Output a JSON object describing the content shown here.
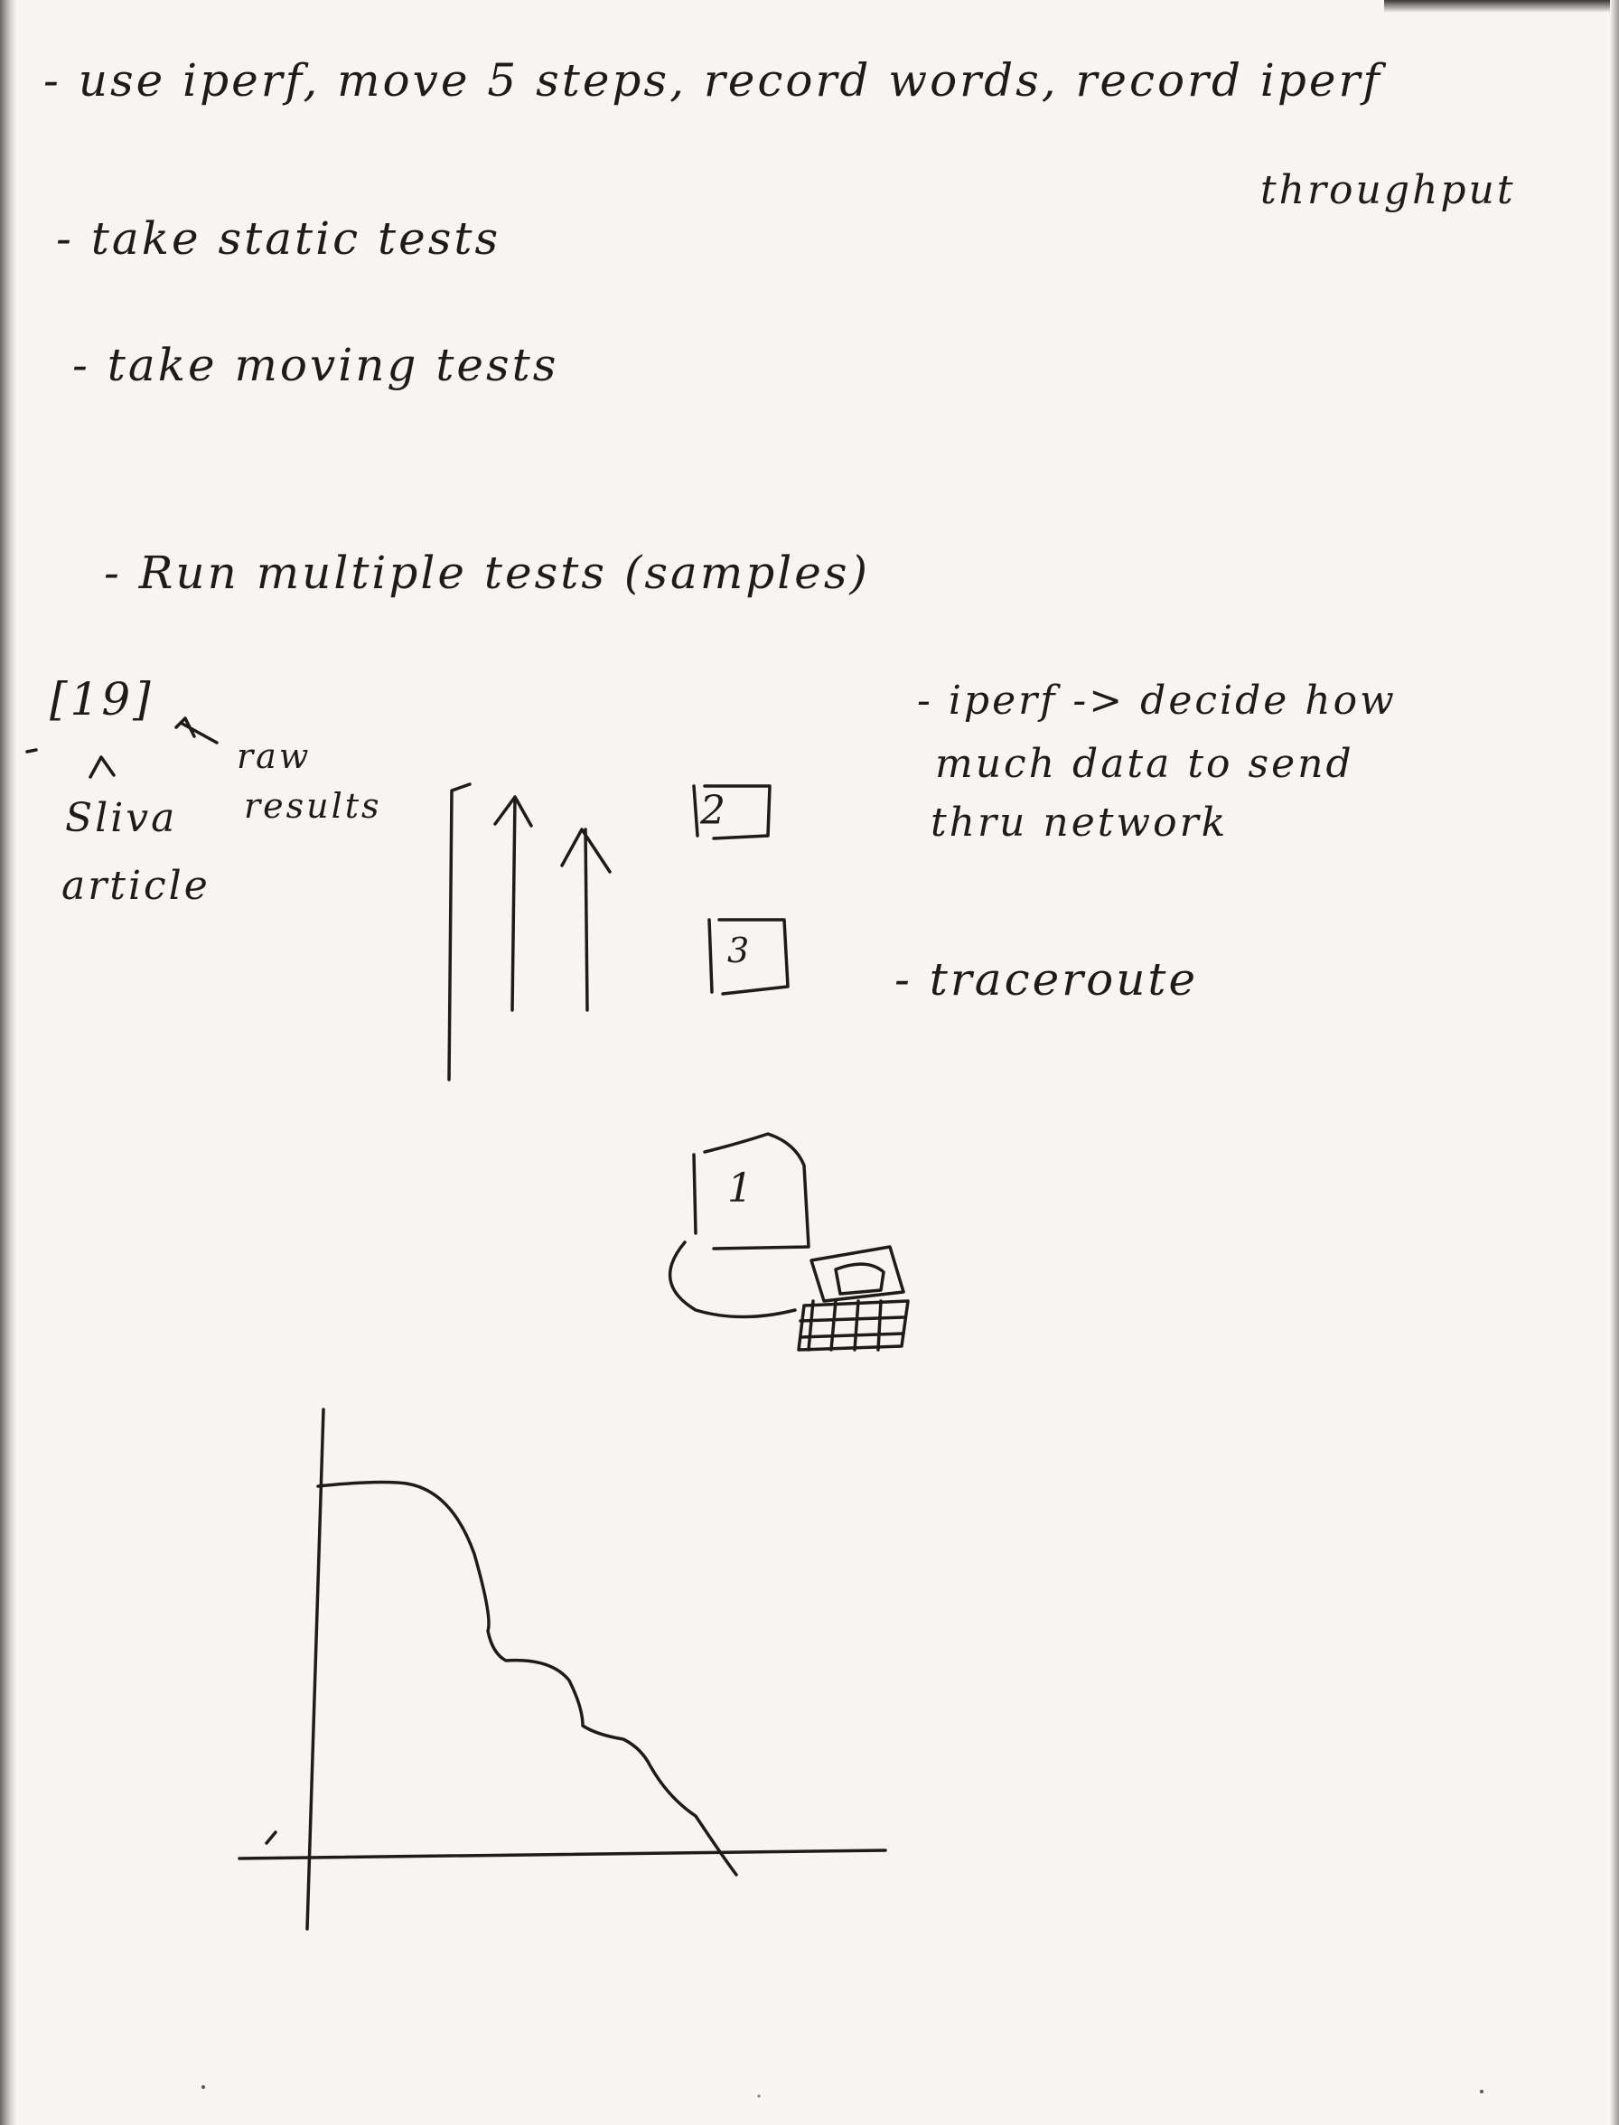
{
  "notes": {
    "line1": "- use iperf, move 5 steps, record words, record iperf",
    "line1_cont": "throughput",
    "line2": "- take static tests",
    "line3": "- take moving tests",
    "line4": "- Run multiple tests (samples)"
  },
  "references": {
    "citation": "[19]",
    "left_label_1": "Sliva",
    "left_label_2": "article",
    "right_label_1": "raw",
    "right_label_2": "results"
  },
  "iperf_note": {
    "line1": "- iperf -> decide how",
    "line2": "much data to send",
    "line3": "thru network"
  },
  "traceroute_note": "- traceroute",
  "markers": {
    "one": "1",
    "two": "2",
    "three": "3"
  }
}
